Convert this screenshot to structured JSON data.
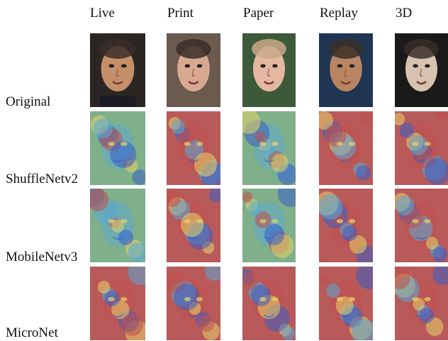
{
  "figure": {
    "columns": [
      {
        "key": "live",
        "label": "Live"
      },
      {
        "key": "print",
        "label": "Print"
      },
      {
        "key": "paper",
        "label": "Paper"
      },
      {
        "key": "replay",
        "label": "Replay"
      },
      {
        "key": "3d",
        "label": "3D"
      }
    ],
    "rows": [
      {
        "key": "original",
        "label": "Original",
        "kind": "photo"
      },
      {
        "key": "shufflenetv2",
        "label": "ShuffleNetv2",
        "kind": "heatmap"
      },
      {
        "key": "mobilenetv3",
        "label": "MobileNetv3",
        "kind": "heatmap"
      },
      {
        "key": "micronet",
        "label": "MicroNet",
        "kind": "heatmap"
      }
    ],
    "colors": {
      "heat_hot": "#c0504d",
      "heat_mid": "#e8d36a",
      "heat_cool": "#5aa9d6",
      "heat_cold": "#3b5fc2",
      "skin": "#d9a07a",
      "background_dark": "#2b2623"
    }
  }
}
